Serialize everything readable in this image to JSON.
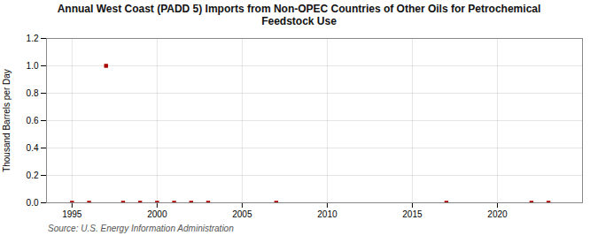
{
  "chart_data": {
    "type": "scatter",
    "title": "Annual West Coast (PADD 5) Imports from Non-OPEC Countries of Other Oils for Petrochemical\nFeedstock Use",
    "ylabel": "Thousand Barrels per Day",
    "source": "Source: U.S. Energy Information Administration",
    "x": [
      1995,
      1996,
      1997,
      1998,
      1999,
      2000,
      2001,
      2002,
      2003,
      2007,
      2017,
      2022,
      2023
    ],
    "values": [
      0.0,
      0.0,
      1.0,
      0.0,
      0.0,
      0.0,
      0.0,
      0.0,
      0.0,
      0.0,
      0.0,
      0.0,
      0.0
    ],
    "color": "#aa0000",
    "marker": "square",
    "xlim": [
      1993.5,
      2025
    ],
    "xticks": [
      1995,
      2000,
      2005,
      2010,
      2015,
      2020
    ],
    "ylim": [
      0.0,
      1.2
    ],
    "yticks": [
      {
        "value": 0.0,
        "label": "0.0"
      },
      0.2,
      0.4,
      0.6,
      0.8,
      {
        "value": 1.0,
        "label": "1.0"
      },
      1.2
    ],
    "grid": true
  }
}
